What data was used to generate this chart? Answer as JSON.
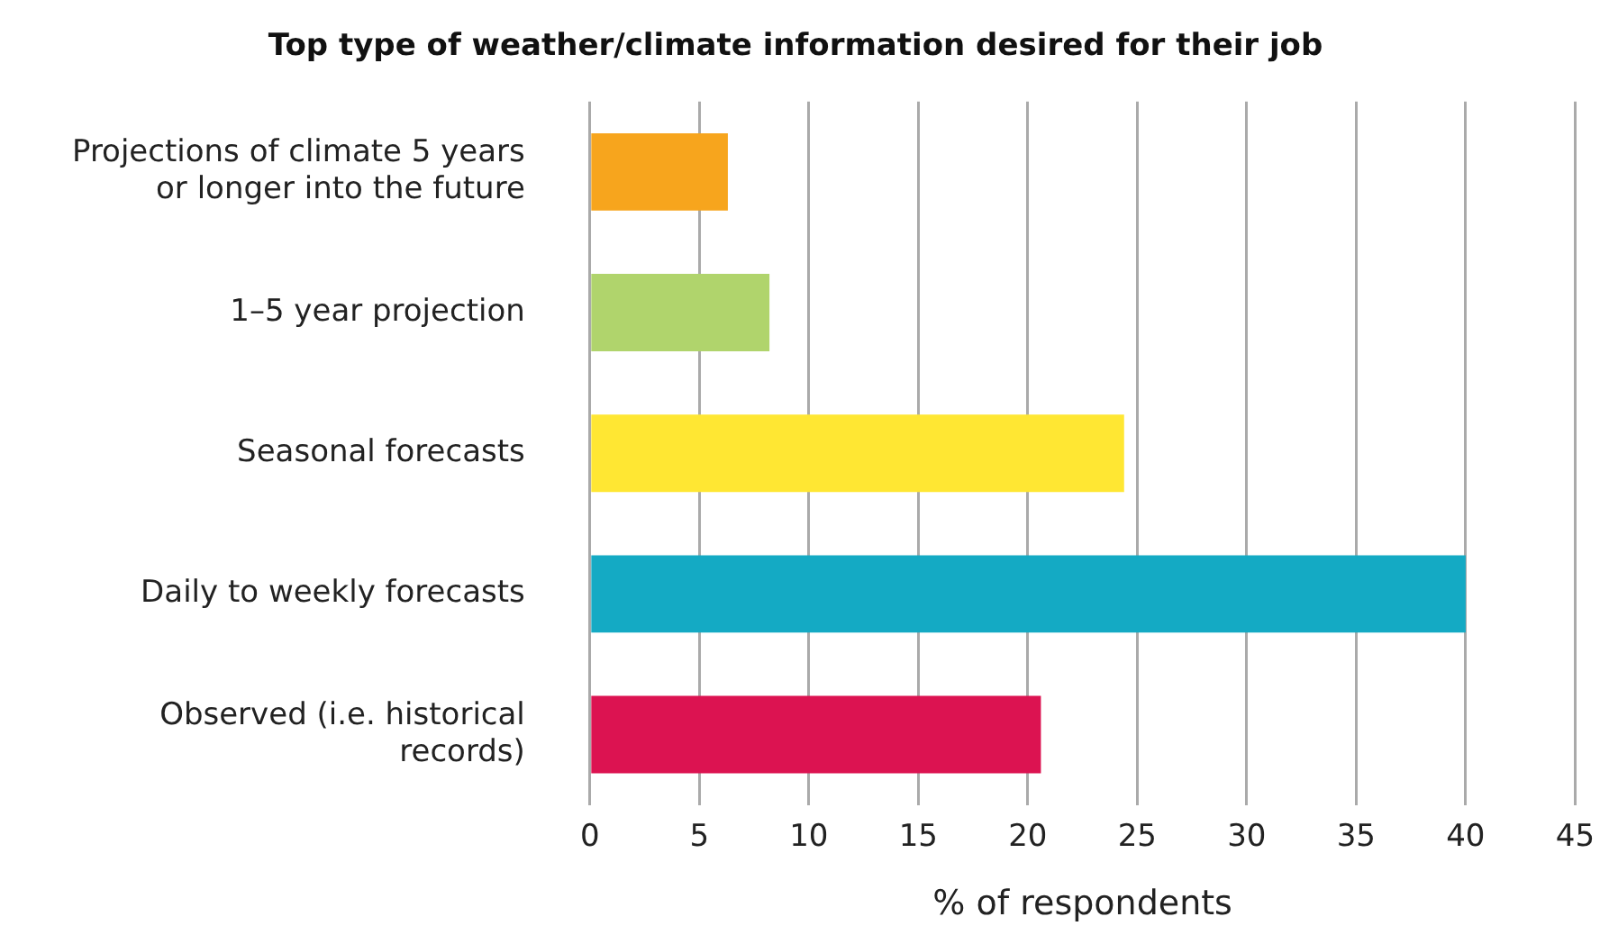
{
  "chart_data": {
    "type": "bar",
    "orientation": "horizontal",
    "title": "Top type of weather/climate information desired for their job",
    "xlabel": "% of respondents",
    "categories": [
      "Projections of climate 5 years or longer into the future",
      "1–5 year projection",
      "Seasonal forecasts",
      "Daily to weekly forecasts",
      "Observed (i.e. historical records)"
    ],
    "values": [
      6.3,
      8.2,
      24.4,
      40.0,
      20.6
    ],
    "colors": [
      "#f7a51d",
      "#b0d46c",
      "#ffe733",
      "#14aac4",
      "#dc1351"
    ],
    "xlim": [
      0,
      45
    ],
    "xticks": [
      0,
      5,
      10,
      15,
      20,
      25,
      30,
      35,
      40,
      45
    ],
    "grid": "x",
    "legend": false
  }
}
